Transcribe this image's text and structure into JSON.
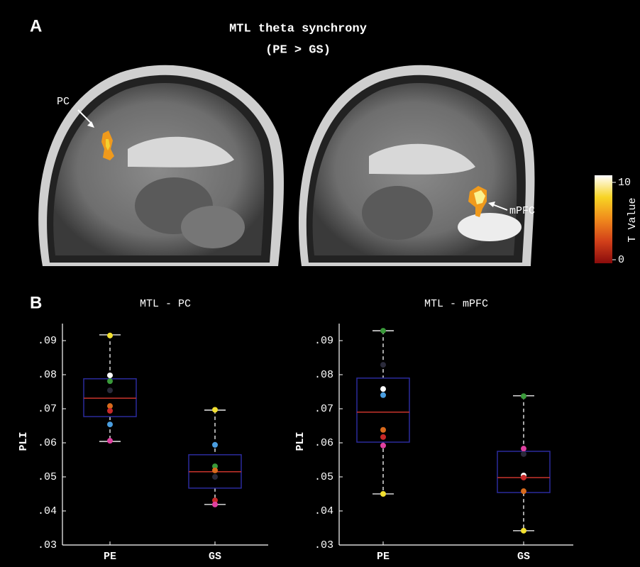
{
  "panel_a": {
    "label": "A",
    "title": [
      "MTL theta synchrony",
      "(PE > GS)"
    ],
    "annotations": [
      "PC",
      "mPFC"
    ],
    "colorbar": {
      "label": "T Value",
      "range": [
        0,
        10
      ],
      "ticks": [
        0,
        10
      ],
      "colors": [
        "#8a0c0c",
        "#d2401a",
        "#f08a1c",
        "#f7d424",
        "#ffffff"
      ]
    }
  },
  "panel_b_label": "B",
  "chart_data": [
    {
      "type": "box",
      "title": "MTL - PC",
      "ylabel": "PLI",
      "categories": [
        "PE",
        "GS"
      ],
      "ylim": [
        0.03,
        0.095
      ],
      "yticks": [
        {
          "value": 0.03,
          "label": ".03"
        },
        {
          "value": 0.04,
          "label": ".04"
        },
        {
          "value": 0.05,
          "label": ".05"
        },
        {
          "value": 0.06,
          "label": ".06"
        },
        {
          "value": 0.07,
          "label": ".07"
        },
        {
          "value": 0.08,
          "label": ".08"
        },
        {
          "value": 0.09,
          "label": ".09"
        }
      ],
      "box_color": "#2b2b9c",
      "median_color": "#c8342c",
      "whisker_color": "#ffffff",
      "boxes": [
        {
          "whisker_low": 0.0604,
          "q1": 0.0677,
          "median": 0.0731,
          "q3": 0.0788,
          "whisker_high": 0.0917,
          "points": [
            {
              "value": 0.0915,
              "color": "#f2e030"
            },
            {
              "value": 0.0798,
              "color": "#ffffff"
            },
            {
              "value": 0.0781,
              "color": "#3a9a3a"
            },
            {
              "value": 0.0754,
              "color": "#2a2a3a"
            },
            {
              "value": 0.0708,
              "color": "#d86a1c"
            },
            {
              "value": 0.0694,
              "color": "#c82828"
            },
            {
              "value": 0.0654,
              "color": "#4a9ee0"
            },
            {
              "value": 0.0606,
              "color": "#e040a0"
            }
          ]
        },
        {
          "whisker_low": 0.0419,
          "q1": 0.0467,
          "median": 0.0515,
          "q3": 0.0565,
          "whisker_high": 0.0696,
          "points": [
            {
              "value": 0.0697,
              "color": "#f2e030"
            },
            {
              "value": 0.0594,
              "color": "#4a9ee0"
            },
            {
              "value": 0.0531,
              "color": "#3a9a3a"
            },
            {
              "value": 0.0519,
              "color": "#d86a1c"
            },
            {
              "value": 0.05,
              "color": "#2a2a3a"
            },
            {
              "value": 0.0431,
              "color": "#c82828"
            },
            {
              "value": 0.0419,
              "color": "#e040a0"
            }
          ]
        }
      ]
    },
    {
      "type": "box",
      "title": "MTL - mPFC",
      "ylabel": "PLI",
      "categories": [
        "PE",
        "GS"
      ],
      "ylim": [
        0.03,
        0.095
      ],
      "yticks": [
        {
          "value": 0.03,
          "label": ".03"
        },
        {
          "value": 0.04,
          "label": ".04"
        },
        {
          "value": 0.05,
          "label": ".05"
        },
        {
          "value": 0.06,
          "label": ".06"
        },
        {
          "value": 0.07,
          "label": ".07"
        },
        {
          "value": 0.08,
          "label": ".08"
        },
        {
          "value": 0.09,
          "label": ".09"
        }
      ],
      "box_color": "#2b2b9c",
      "median_color": "#c8342c",
      "whisker_color": "#ffffff",
      "boxes": [
        {
          "whisker_low": 0.045,
          "q1": 0.0602,
          "median": 0.069,
          "q3": 0.079,
          "whisker_high": 0.0929,
          "points": [
            {
              "value": 0.0929,
              "color": "#3a9a3a"
            },
            {
              "value": 0.0829,
              "color": "#2a2a3a"
            },
            {
              "value": 0.0758,
              "color": "#ffffff"
            },
            {
              "value": 0.074,
              "color": "#4a9ee0"
            },
            {
              "value": 0.0638,
              "color": "#d86a1c"
            },
            {
              "value": 0.0617,
              "color": "#c82828"
            },
            {
              "value": 0.0592,
              "color": "#e040a0"
            },
            {
              "value": 0.045,
              "color": "#f2e030"
            }
          ]
        },
        {
          "whisker_low": 0.0342,
          "q1": 0.0454,
          "median": 0.0498,
          "q3": 0.0575,
          "whisker_high": 0.0738,
          "points": [
            {
              "value": 0.0737,
              "color": "#3a9a3a"
            },
            {
              "value": 0.0583,
              "color": "#e040a0"
            },
            {
              "value": 0.0567,
              "color": "#2a2a3a"
            },
            {
              "value": 0.0504,
              "color": "#ffffff"
            },
            {
              "value": 0.0498,
              "color": "#c82828"
            },
            {
              "value": 0.0458,
              "color": "#d86a1c"
            },
            {
              "value": 0.0342,
              "color": "#f2e030"
            }
          ]
        }
      ]
    }
  ]
}
